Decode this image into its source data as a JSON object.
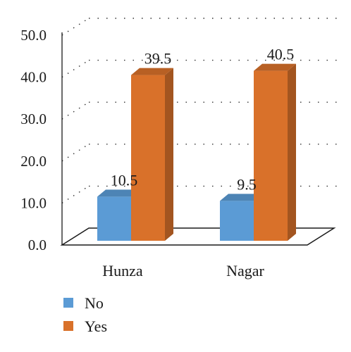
{
  "chart_data": {
    "type": "bar",
    "style": "3d-clustered-column",
    "categories": [
      "Hunza",
      "Nagar"
    ],
    "series": [
      {
        "name": "No",
        "values": [
          10.5,
          9.5
        ],
        "color": "#5b9bd5"
      },
      {
        "name": "Yes",
        "values": [
          39.5,
          40.5
        ],
        "color": "#d9712a"
      }
    ],
    "data_labels": [
      [
        "10.5",
        "9.5"
      ],
      [
        "39.5",
        "40.5"
      ]
    ],
    "ylim": [
      0,
      50
    ],
    "yticks": [
      "0.0",
      "10.0",
      "20.0",
      "30.0",
      "40.0",
      "50.0"
    ],
    "grid": true,
    "legend_position": "bottom-left"
  }
}
